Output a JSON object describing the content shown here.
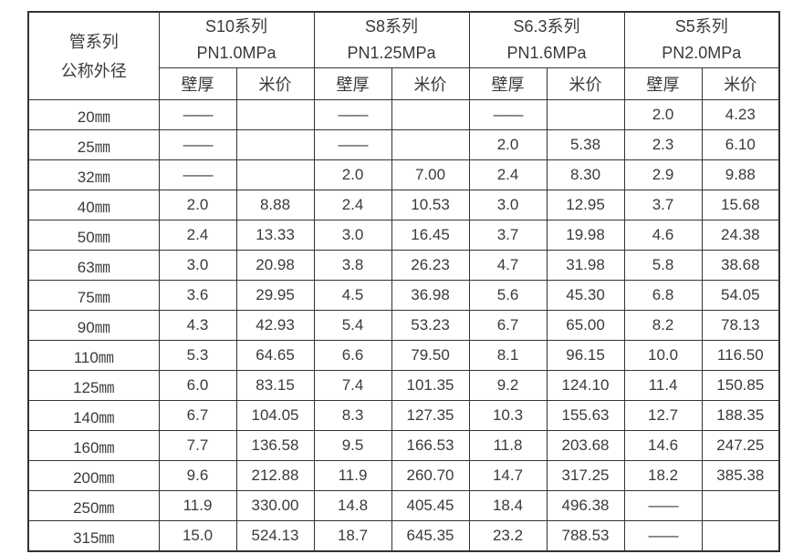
{
  "table": {
    "corner_header_line1": "管系列",
    "corner_header_line2": "公称外径",
    "series": [
      {
        "name": "S10系列",
        "pressure": "PN1.0MPa"
      },
      {
        "name": "S8系列",
        "pressure": "PN1.25MPa"
      },
      {
        "name": "S6.3系列",
        "pressure": "PN1.6MPa"
      },
      {
        "name": "S5系列",
        "pressure": "PN2.0MPa"
      }
    ],
    "sub_headers": [
      "壁厚",
      "米价"
    ],
    "rows": [
      {
        "label": "20㎜",
        "cells": [
          "——",
          "",
          "——",
          "",
          "——",
          "",
          "2.0",
          "4.23"
        ]
      },
      {
        "label": "25㎜",
        "cells": [
          "——",
          "",
          "——",
          "",
          "2.0",
          "5.38",
          "2.3",
          "6.10"
        ]
      },
      {
        "label": "32㎜",
        "cells": [
          "——",
          "",
          "2.0",
          "7.00",
          "2.4",
          "8.30",
          "2.9",
          "9.88"
        ]
      },
      {
        "label": "40㎜",
        "cells": [
          "2.0",
          "8.88",
          "2.4",
          "10.53",
          "3.0",
          "12.95",
          "3.7",
          "15.68"
        ]
      },
      {
        "label": "50㎜",
        "cells": [
          "2.4",
          "13.33",
          "3.0",
          "16.45",
          "3.7",
          "19.98",
          "4.6",
          "24.38"
        ]
      },
      {
        "label": "63㎜",
        "cells": [
          "3.0",
          "20.98",
          "3.8",
          "26.23",
          "4.7",
          "31.98",
          "5.8",
          "38.68"
        ]
      },
      {
        "label": "75㎜",
        "cells": [
          "3.6",
          "29.95",
          "4.5",
          "36.98",
          "5.6",
          "45.30",
          "6.8",
          "54.05"
        ]
      },
      {
        "label": "90㎜",
        "cells": [
          "4.3",
          "42.93",
          "5.4",
          "53.23",
          "6.7",
          "65.00",
          "8.2",
          "78.13"
        ]
      },
      {
        "label": "110㎜",
        "cells": [
          "5.3",
          "64.65",
          "6.6",
          "79.50",
          "8.1",
          "96.15",
          "10.0",
          "116.50"
        ]
      },
      {
        "label": "125㎜",
        "cells": [
          "6.0",
          "83.15",
          "7.4",
          "101.35",
          "9.2",
          "124.10",
          "11.4",
          "150.85"
        ]
      },
      {
        "label": "140㎜",
        "cells": [
          "6.7",
          "104.05",
          "8.3",
          "127.35",
          "10.3",
          "155.63",
          "12.7",
          "188.35"
        ]
      },
      {
        "label": "160㎜",
        "cells": [
          "7.7",
          "136.58",
          "9.5",
          "166.53",
          "11.8",
          "203.68",
          "14.6",
          "247.25"
        ]
      },
      {
        "label": "200㎜",
        "cells": [
          "9.6",
          "212.88",
          "11.9",
          "260.70",
          "14.7",
          "317.25",
          "18.2",
          "385.38"
        ]
      },
      {
        "label": "250㎜",
        "cells": [
          "11.9",
          "330.00",
          "14.8",
          "405.45",
          "18.4",
          "496.38",
          "——",
          ""
        ]
      },
      {
        "label": "315㎜",
        "cells": [
          "15.0",
          "524.13",
          "18.7",
          "645.35",
          "23.2",
          "788.53",
          "——",
          ""
        ]
      }
    ]
  }
}
